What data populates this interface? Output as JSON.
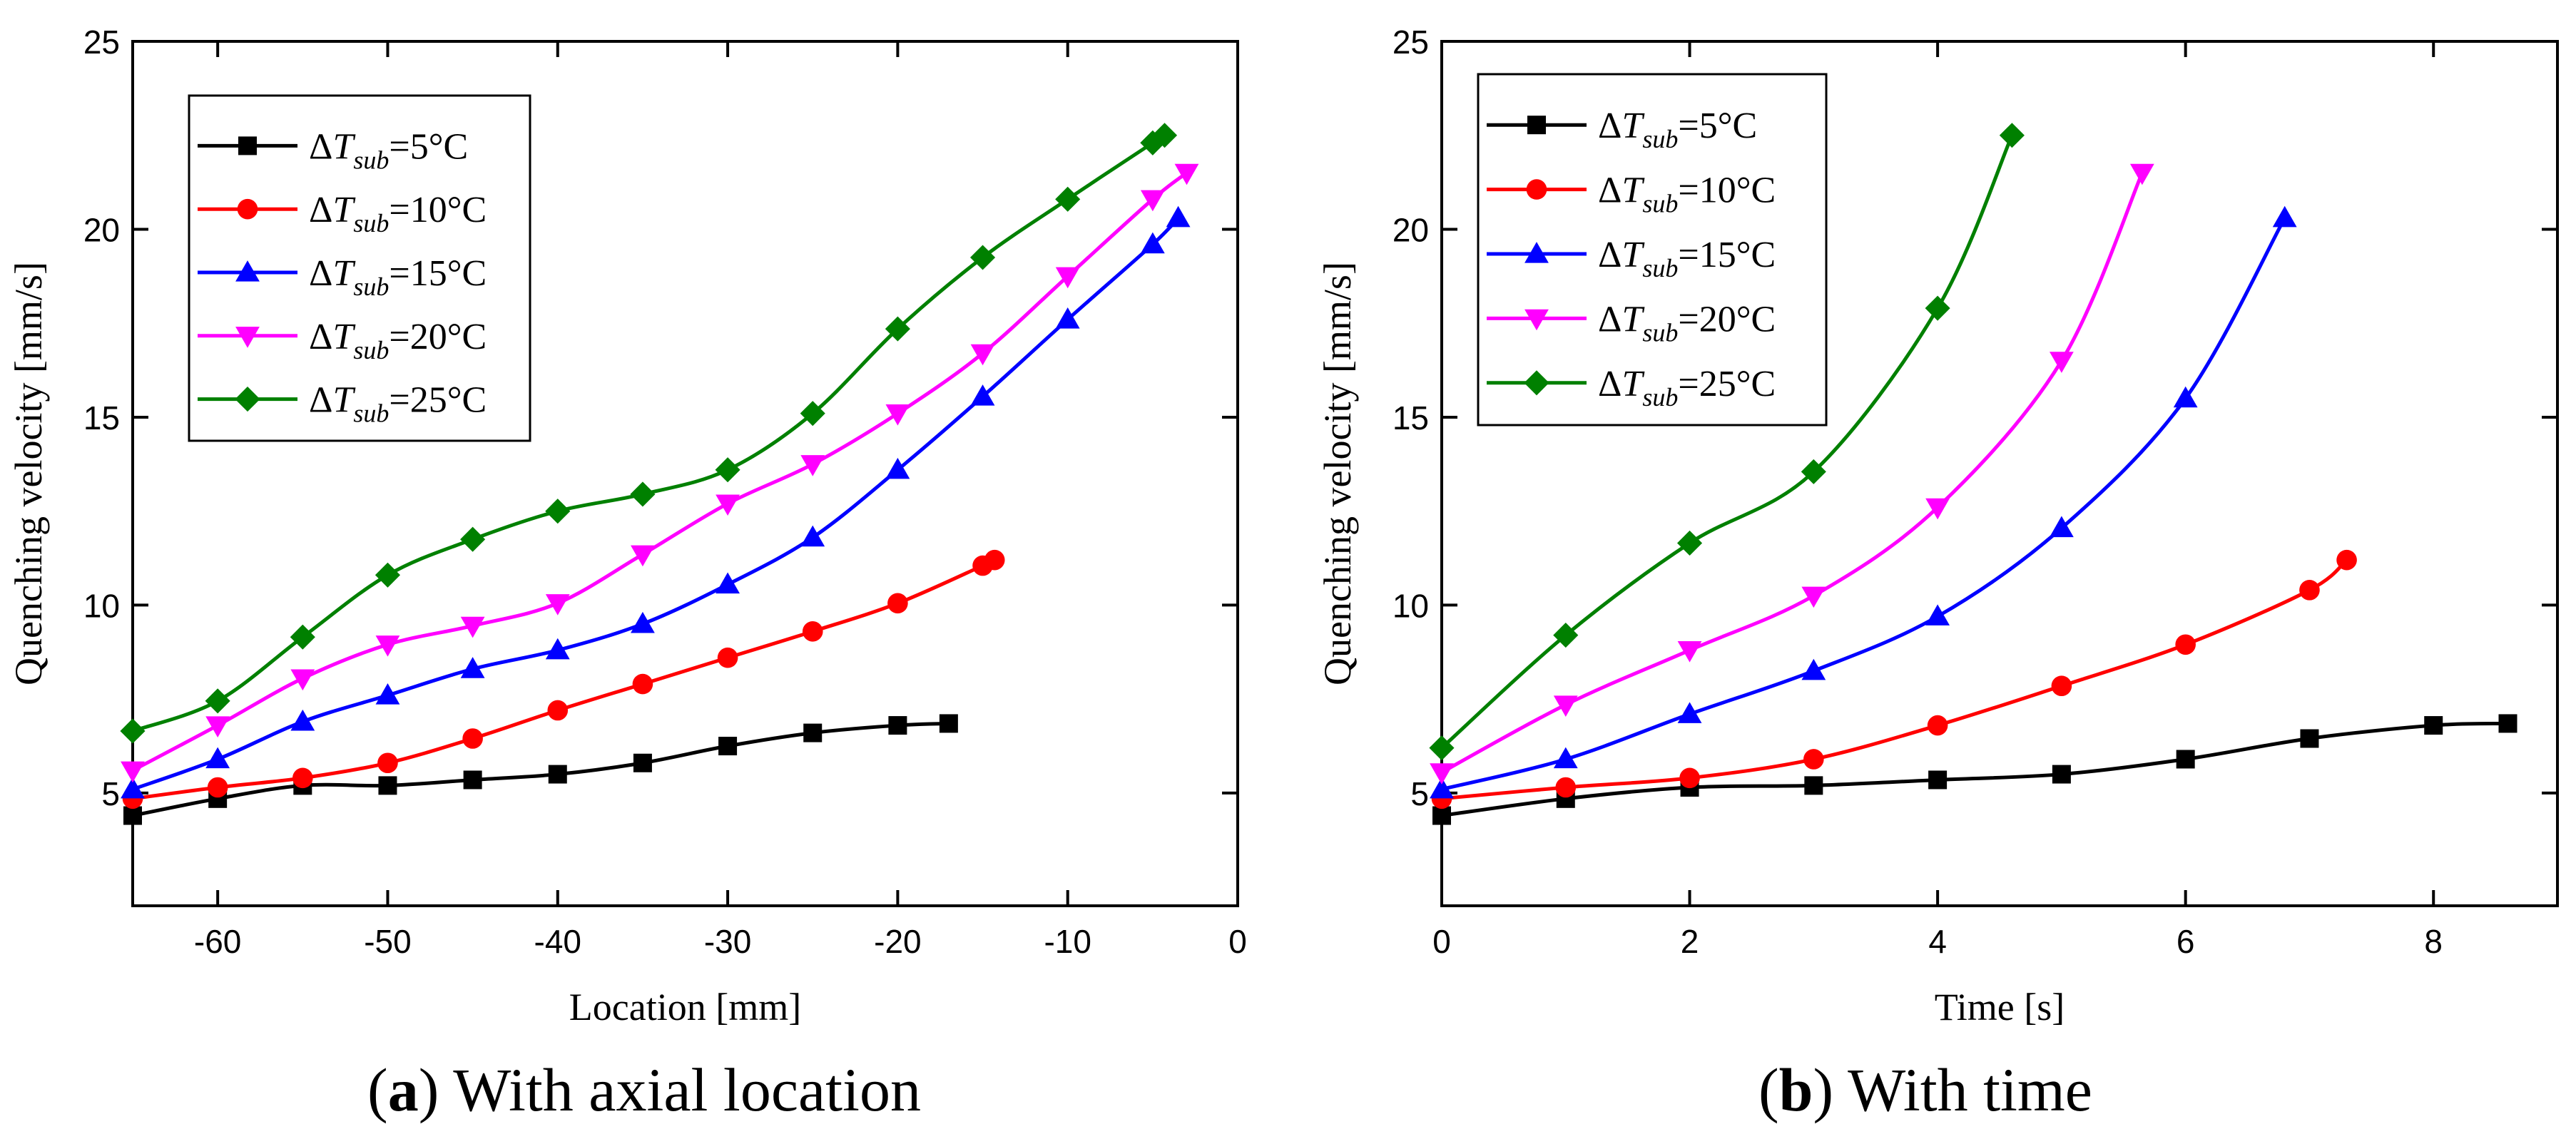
{
  "chart_data": [
    {
      "id": "a",
      "type": "line",
      "xlabel": "Location [mm]",
      "ylabel": "Quenching velocity [mm/s]",
      "xlim": [
        -65,
        0
      ],
      "ylim": [
        2,
        25
      ],
      "xticks": [
        -60,
        -50,
        -40,
        -30,
        -20,
        -10,
        0
      ],
      "yticks": [
        5,
        10,
        15,
        20,
        25
      ],
      "legend_position": "top-left",
      "caption": {
        "letter": "a",
        "text": "With axial location"
      },
      "series": [
        {
          "name": "ΔTsub=5°C",
          "delta": "ΔT",
          "sub": "sub",
          "value": "=5°C",
          "color": "#000000",
          "marker": "square",
          "x": [
            -65,
            -60,
            -55,
            -50,
            -45,
            -40,
            -35,
            -30,
            -25,
            -20,
            -17
          ],
          "y": [
            4.4,
            4.85,
            5.2,
            5.2,
            5.35,
            5.5,
            5.8,
            6.25,
            6.6,
            6.8,
            6.85
          ]
        },
        {
          "name": "ΔTsub=10°C",
          "delta": "ΔT",
          "sub": "sub",
          "value": "=10°C",
          "color": "#ff0000",
          "marker": "circle",
          "x": [
            -65,
            -60,
            -55,
            -50,
            -45,
            -40,
            -35,
            -30,
            -25,
            -20,
            -15,
            -14.3
          ],
          "y": [
            4.85,
            5.15,
            5.4,
            5.8,
            6.45,
            7.2,
            7.9,
            8.6,
            9.3,
            10.05,
            11.05,
            11.2
          ]
        },
        {
          "name": "ΔTsub=15°C",
          "delta": "ΔT",
          "sub": "sub",
          "value": "=15°C",
          "color": "#0000ff",
          "marker": "triangle-up",
          "x": [
            -65,
            -60,
            -55,
            -50,
            -45,
            -40,
            -35,
            -30,
            -25,
            -20,
            -15,
            -10,
            -5,
            -3.5
          ],
          "y": [
            5.1,
            5.9,
            6.9,
            7.6,
            8.3,
            8.8,
            9.5,
            10.55,
            11.8,
            13.6,
            15.55,
            17.6,
            19.6,
            20.3
          ]
        },
        {
          "name": "ΔTsub=20°C",
          "delta": "ΔT",
          "sub": "sub",
          "value": "=20°C",
          "color": "#ff00ff",
          "marker": "triangle-down",
          "x": [
            -65,
            -60,
            -55,
            -50,
            -45,
            -40,
            -35,
            -30,
            -25,
            -20,
            -15,
            -10,
            -5,
            -3
          ],
          "y": [
            5.6,
            6.8,
            8.05,
            8.95,
            9.45,
            10.05,
            11.35,
            12.7,
            13.75,
            15.1,
            16.7,
            18.75,
            20.8,
            21.5
          ]
        },
        {
          "name": "ΔTsub=25°C",
          "delta": "ΔT",
          "sub": "sub",
          "value": "=25°C",
          "color": "#008000",
          "marker": "diamond",
          "x": [
            -65,
            -60,
            -55,
            -50,
            -45,
            -40,
            -35,
            -30,
            -25,
            -20,
            -15,
            -10,
            -5,
            -4.3
          ],
          "y": [
            6.65,
            7.45,
            9.15,
            10.8,
            11.75,
            12.5,
            12.95,
            13.6,
            15.1,
            17.35,
            19.25,
            20.8,
            22.3,
            22.5
          ]
        }
      ]
    },
    {
      "id": "b",
      "type": "line",
      "xlabel": "Time [s]",
      "ylabel": "Quenching velocity [mm/s]",
      "xlim": [
        0,
        9
      ],
      "ylim": [
        2,
        25
      ],
      "xticks": [
        0,
        2,
        4,
        6,
        8
      ],
      "yticks": [
        5,
        10,
        15,
        20,
        25
      ],
      "legend_position": "top-left",
      "caption": {
        "letter": "b",
        "text": "With time"
      },
      "series": [
        {
          "name": "ΔTsub=5°C",
          "delta": "ΔT",
          "sub": "sub",
          "value": "=5°C",
          "color": "#000000",
          "marker": "square",
          "x": [
            0,
            1,
            2,
            3,
            4,
            5,
            6,
            7,
            8,
            8.6
          ],
          "y": [
            4.4,
            4.85,
            5.15,
            5.2,
            5.35,
            5.5,
            5.9,
            6.45,
            6.8,
            6.85
          ]
        },
        {
          "name": "ΔTsub=10°C",
          "delta": "ΔT",
          "sub": "sub",
          "value": "=10°C",
          "color": "#ff0000",
          "marker": "circle",
          "x": [
            0,
            1,
            2,
            3,
            4,
            5,
            6,
            7,
            7.3
          ],
          "y": [
            4.85,
            5.15,
            5.4,
            5.9,
            6.8,
            7.85,
            8.95,
            10.4,
            11.2
          ]
        },
        {
          "name": "ΔTsub=15°C",
          "delta": "ΔT",
          "sub": "sub",
          "value": "=15°C",
          "color": "#0000ff",
          "marker": "triangle-up",
          "x": [
            0,
            1,
            2,
            3,
            4,
            5,
            6,
            6.8
          ],
          "y": [
            5.1,
            5.9,
            7.1,
            8.25,
            9.7,
            12.05,
            15.5,
            20.3
          ]
        },
        {
          "name": "ΔTsub=20°C",
          "delta": "ΔT",
          "sub": "sub",
          "value": "=20°C",
          "color": "#ff00ff",
          "marker": "triangle-down",
          "x": [
            0,
            1,
            2,
            3,
            4,
            5,
            5.65
          ],
          "y": [
            5.55,
            7.35,
            8.8,
            10.25,
            12.6,
            16.5,
            21.5
          ]
        },
        {
          "name": "ΔTsub=25°C",
          "delta": "ΔT",
          "sub": "sub",
          "value": "=25°C",
          "color": "#008000",
          "marker": "diamond",
          "x": [
            0,
            1,
            2,
            3,
            4,
            4.6
          ],
          "y": [
            6.2,
            9.2,
            11.65,
            13.55,
            17.9,
            22.5
          ]
        }
      ]
    }
  ]
}
